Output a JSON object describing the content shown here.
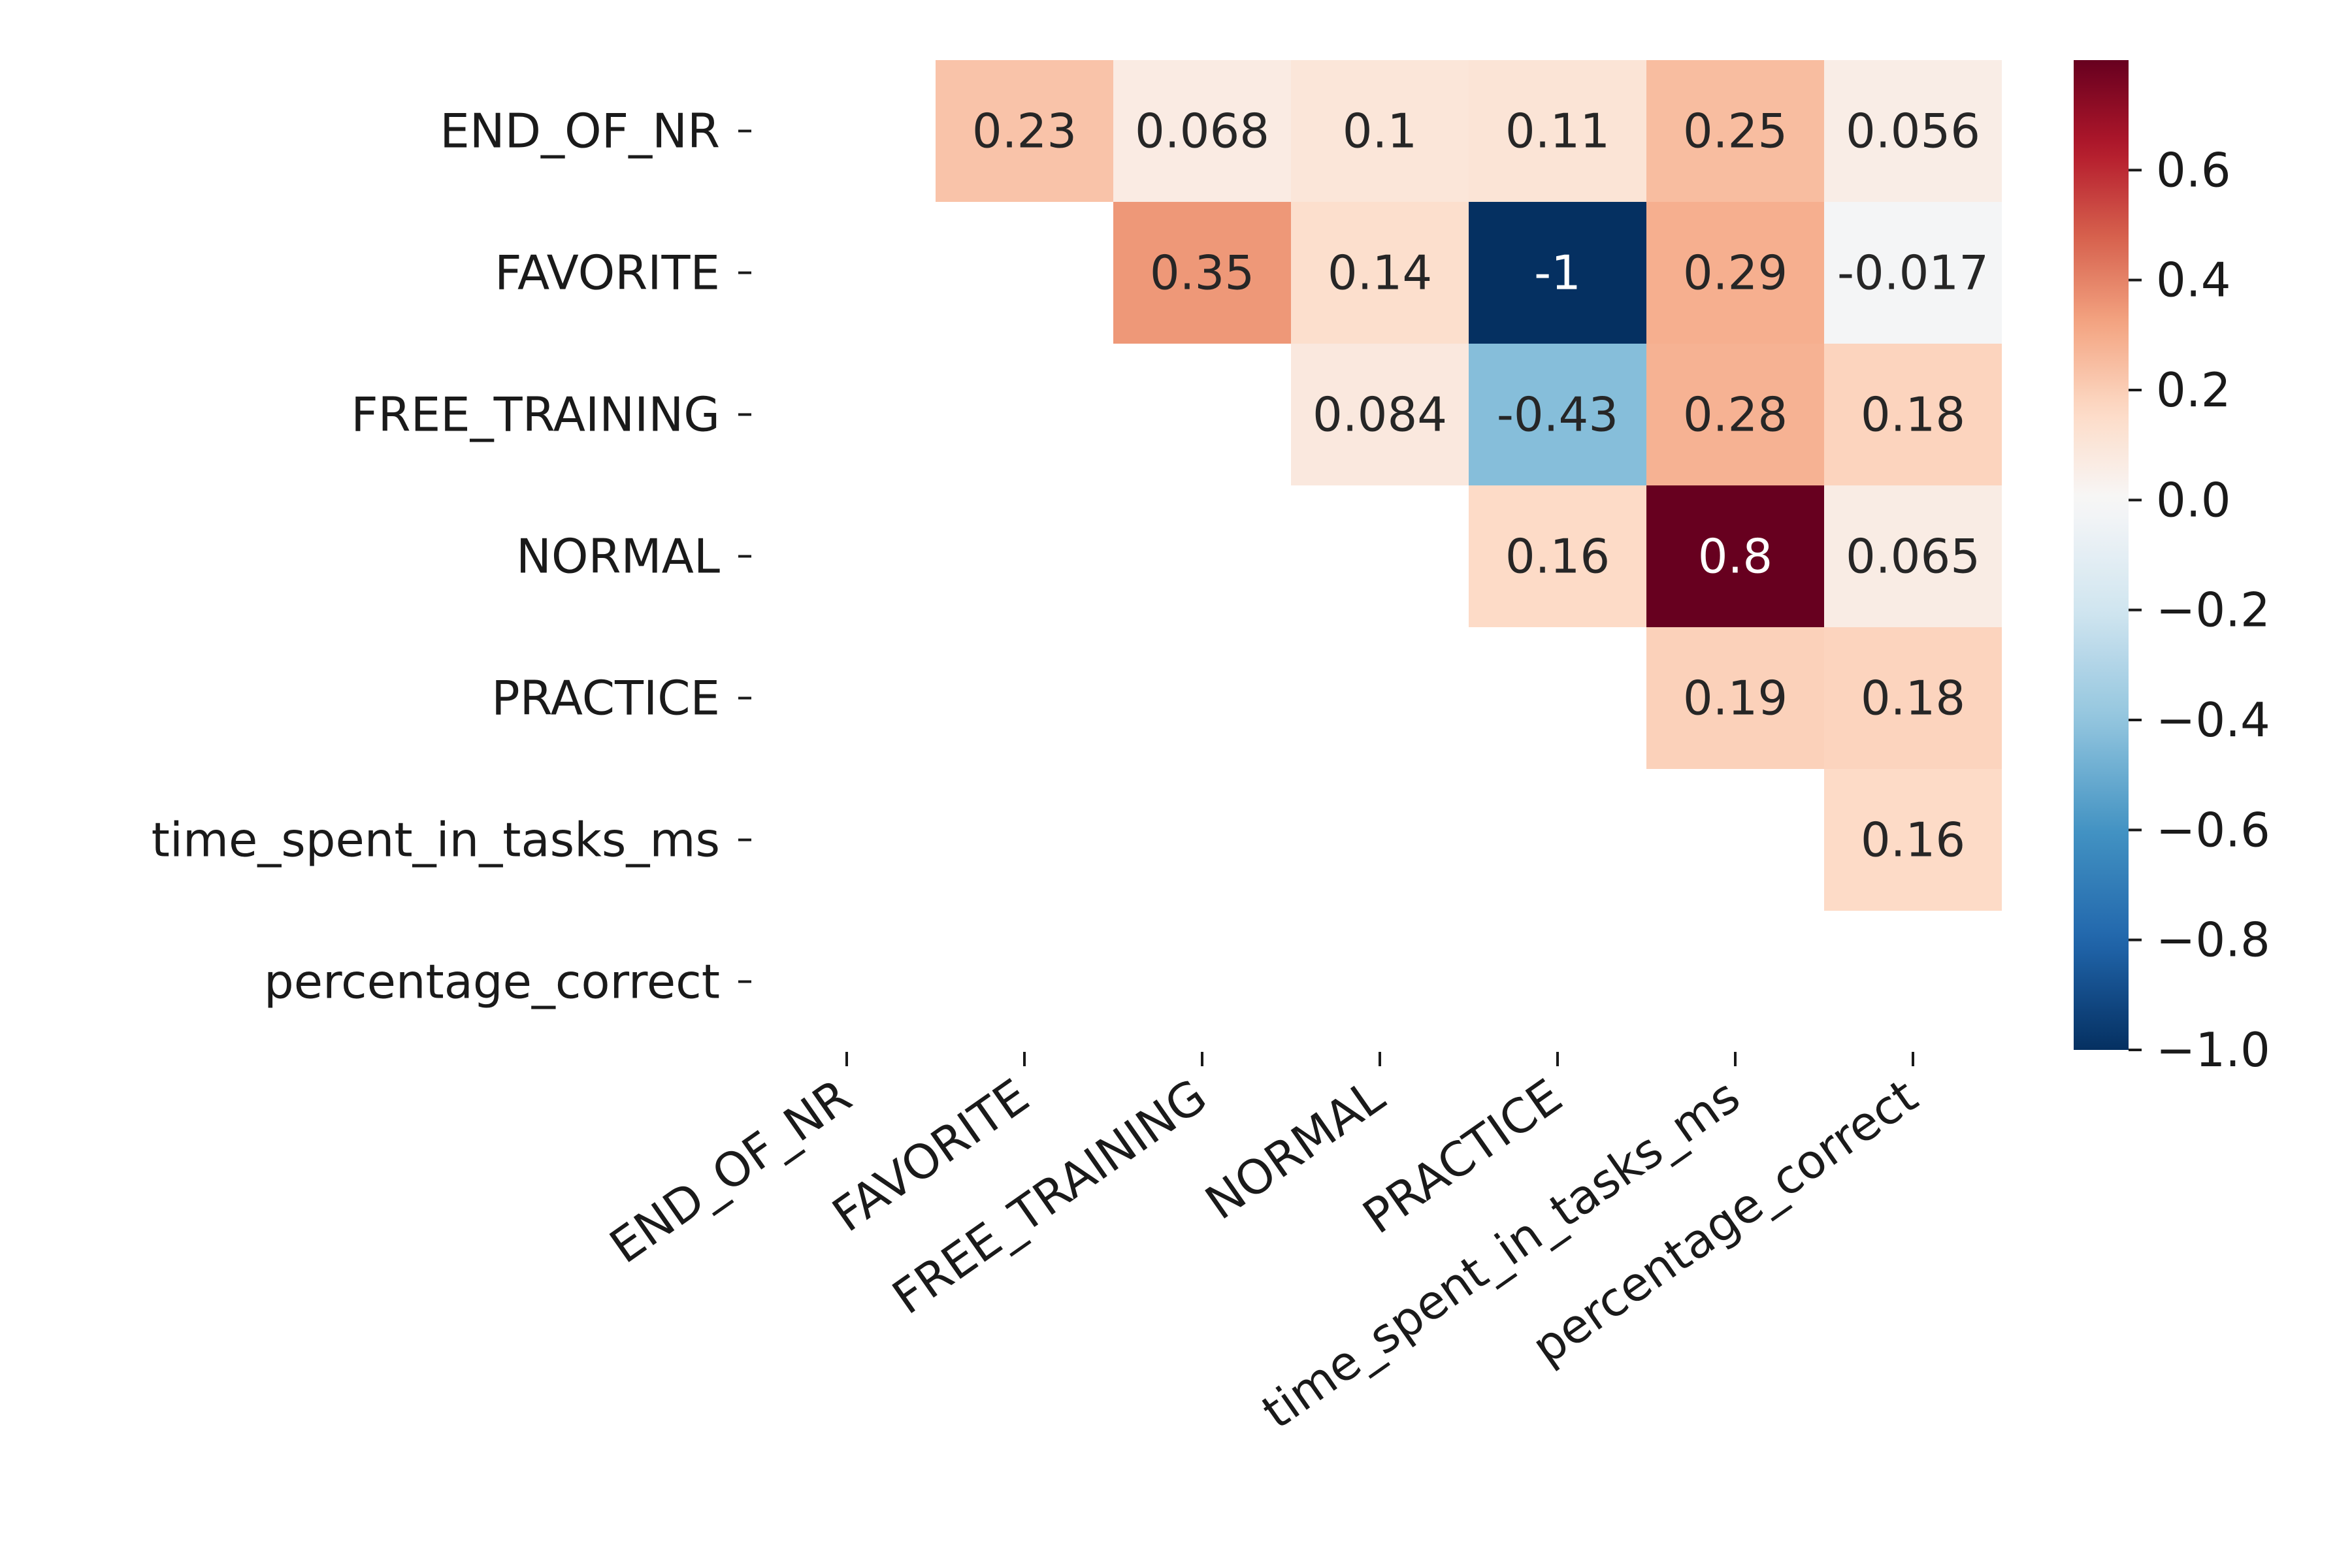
{
  "chart_data": {
    "type": "heatmap",
    "title": "",
    "xlabel": "",
    "ylabel": "",
    "rows": [
      "END_OF_NR",
      "FAVORITE",
      "FREE_TRAINING",
      "NORMAL",
      "PRACTICE",
      "time_spent_in_tasks_ms",
      "percentage_correct"
    ],
    "columns": [
      "END_OF_NR",
      "FAVORITE",
      "FREE_TRAINING",
      "NORMAL",
      "PRACTICE",
      "time_spent_in_tasks_ms",
      "percentage_correct"
    ],
    "values": [
      [
        null,
        0.23,
        0.068,
        0.1,
        0.11,
        0.25,
        0.056
      ],
      [
        null,
        null,
        0.35,
        0.14,
        -1,
        0.29,
        -0.017
      ],
      [
        null,
        null,
        null,
        0.084,
        -0.43,
        0.28,
        0.18
      ],
      [
        null,
        null,
        null,
        null,
        0.16,
        0.8,
        0.065
      ],
      [
        null,
        null,
        null,
        null,
        null,
        0.19,
        0.18
      ],
      [
        null,
        null,
        null,
        null,
        null,
        null,
        0.16
      ],
      [
        null,
        null,
        null,
        null,
        null,
        null,
        null
      ]
    ],
    "colormap": "RdBu_r",
    "vmin": -1.0,
    "vmax": 0.8,
    "colorbar_ticks": [
      0.6,
      0.4,
      0.2,
      0.0,
      -0.2,
      -0.4,
      -0.6,
      -0.8,
      -1.0
    ],
    "colorbar_tick_labels": [
      "0.6",
      "0.4",
      "0.2",
      "0.0",
      "−0.2",
      "−0.4",
      "−0.6",
      "−0.8",
      "−1.0"
    ]
  }
}
